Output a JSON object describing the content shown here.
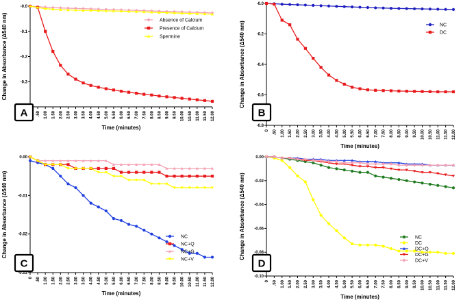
{
  "chart_data": [
    {
      "type": "line",
      "panel": "A",
      "xlabel": "Time (minutes)",
      "ylabel": "Change in Absorbance (Δ540 nm)",
      "categories": [
        "0",
        ".50",
        "1.00",
        "1.50",
        "2.00",
        "2.50",
        "3.00",
        "3.50",
        "4.00",
        "4.50",
        "5.00",
        "5.50",
        "6.00",
        "6.50",
        "7.00",
        "7.50",
        "8.00",
        "8.50",
        "9.00",
        "9.50",
        "10.00",
        "10.50",
        "11.00",
        "11.50",
        "12.00"
      ],
      "ylim": [
        -0.4,
        0.0
      ],
      "yticks": [
        "-0.4",
        "-0.3",
        "-0.2",
        "-0.1",
        "-0.0"
      ],
      "ytick_values": [
        -0.4,
        -0.3,
        -0.2,
        -0.1,
        0.0
      ],
      "legend_position": "top-right",
      "series": [
        {
          "name": "Absence of Calcium",
          "color": "#f4a0b4",
          "marker": "diamond",
          "values": [
            0,
            -0.002,
            -0.004,
            -0.006,
            -0.007,
            -0.008,
            -0.009,
            -0.01,
            -0.011,
            -0.012,
            -0.013,
            -0.014,
            -0.015,
            -0.016,
            -0.017,
            -0.018,
            -0.019,
            -0.02,
            -0.021,
            -0.022,
            -0.023,
            -0.024,
            -0.025,
            -0.026,
            -0.027
          ]
        },
        {
          "name": "Presence of Calcium",
          "color": "#e8191b",
          "marker": "square",
          "values": [
            0,
            -0.005,
            -0.1,
            -0.18,
            -0.235,
            -0.27,
            -0.29,
            -0.305,
            -0.315,
            -0.322,
            -0.328,
            -0.333,
            -0.338,
            -0.342,
            -0.346,
            -0.35,
            -0.353,
            -0.357,
            -0.36,
            -0.363,
            -0.366,
            -0.369,
            -0.372,
            -0.375,
            -0.378
          ]
        },
        {
          "name": "Spermine",
          "color": "#ffff00",
          "marker": "triangle",
          "values": [
            0,
            -0.005,
            -0.01,
            -0.012,
            -0.014,
            -0.015,
            -0.016,
            -0.017,
            -0.017,
            -0.018,
            -0.019,
            -0.019,
            -0.02,
            -0.021,
            -0.022,
            -0.023,
            -0.024,
            -0.025,
            -0.026,
            -0.027,
            -0.028,
            -0.029,
            -0.03,
            -0.031,
            -0.032
          ]
        }
      ]
    },
    {
      "type": "line",
      "panel": "B",
      "xlabel": "Time (minutes)",
      "ylabel": "Change in Absorbance (Δ540 nm)",
      "categories": [
        "0",
        ".50",
        "1.00",
        "1.50",
        "2.00",
        "2.50",
        "3.00",
        "3.50",
        "4.00",
        "4.50",
        "5.00",
        "5.50",
        "6.00",
        "6.50",
        "7.00",
        "7.50",
        "8.00",
        "8.50",
        "9.00",
        "9.50",
        "10.00",
        "10.50",
        "11.00",
        "11.50",
        "12.00"
      ],
      "ylim": [
        -0.8,
        0.0
      ],
      "yticks": [
        "-0.8",
        "-0.6",
        "-0.4",
        "-0.2",
        "-0.0"
      ],
      "ytick_values": [
        -0.8,
        -0.6,
        -0.4,
        -0.2,
        0.0
      ],
      "legend_position": "top-right",
      "series": [
        {
          "name": "NC",
          "color": "#1f1fbf",
          "marker": "circle",
          "values": [
            0,
            -0.002,
            -0.005,
            -0.007,
            -0.009,
            -0.011,
            -0.013,
            -0.015,
            -0.017,
            -0.019,
            -0.021,
            -0.023,
            -0.025,
            -0.027,
            -0.029,
            -0.03,
            -0.032,
            -0.033,
            -0.034,
            -0.035,
            -0.036,
            -0.037,
            -0.038,
            -0.039,
            -0.04
          ]
        },
        {
          "name": "DC",
          "color": "#e8191b",
          "marker": "square",
          "values": [
            0,
            -0.005,
            -0.11,
            -0.14,
            -0.235,
            -0.295,
            -0.36,
            -0.42,
            -0.47,
            -0.505,
            -0.53,
            -0.55,
            -0.56,
            -0.567,
            -0.57,
            -0.572,
            -0.573,
            -0.575,
            -0.576,
            -0.577,
            -0.578,
            -0.579,
            -0.58,
            -0.58,
            -0.58
          ]
        }
      ]
    },
    {
      "type": "line",
      "panel": "C",
      "xlabel": "Time (minutes)",
      "ylabel": "Change in Absorbance (Δ540 nm)",
      "categories": [
        "0",
        ".50",
        "1.00",
        "1.50",
        "2.00",
        "2.50",
        "3.00",
        "3.50",
        "4.00",
        "4.50",
        "5.00",
        "5.50",
        "6.00",
        "6.50",
        "7.00",
        "7.50",
        "8.00",
        "8.50",
        "9.00",
        "9.50",
        "10.00",
        "10.50",
        "11.00",
        "11.50",
        "12.00"
      ],
      "ylim": [
        -0.03,
        0.0
      ],
      "yticks": [
        "-0.03",
        "-0.02",
        "-0.01",
        "0.00"
      ],
      "ytick_values": [
        -0.03,
        -0.02,
        -0.01,
        0.0
      ],
      "legend_position": "bottom-right",
      "series": [
        {
          "name": "NC",
          "color": "#1f3fdf",
          "marker": "circle",
          "values": [
            -0.001,
            -0.0015,
            -0.002,
            -0.003,
            -0.005,
            -0.007,
            -0.008,
            -0.01,
            -0.012,
            -0.013,
            -0.014,
            -0.016,
            -0.0165,
            -0.0175,
            -0.018,
            -0.019,
            -0.02,
            -0.021,
            -0.022,
            -0.023,
            -0.024,
            -0.025,
            -0.025,
            -0.026,
            -0.026
          ]
        },
        {
          "name": "NC+Q",
          "color": "#e8191b",
          "marker": "square",
          "values": [
            0,
            -0.001,
            -0.002,
            -0.002,
            -0.002,
            -0.002,
            -0.003,
            -0.003,
            -0.003,
            -0.003,
            -0.003,
            -0.003,
            -0.004,
            -0.004,
            -0.004,
            -0.004,
            -0.004,
            -0.004,
            -0.005,
            -0.005,
            -0.005,
            -0.005,
            -0.005,
            -0.005,
            -0.005
          ]
        },
        {
          "name": "NC+G",
          "color": "#f4a0b4",
          "marker": "triangle",
          "values": [
            0,
            -0.001,
            -0.001,
            -0.001,
            -0.001,
            -0.001,
            -0.001,
            -0.001,
            -0.001,
            -0.001,
            -0.001,
            -0.002,
            -0.002,
            -0.002,
            -0.002,
            -0.002,
            -0.002,
            -0.002,
            -0.003,
            -0.003,
            -0.003,
            -0.003,
            -0.003,
            -0.003,
            -0.003
          ]
        },
        {
          "name": "NC+V",
          "color": "#ffff00",
          "marker": "triangle-down",
          "values": [
            0,
            -0.001,
            -0.002,
            -0.002,
            -0.002,
            -0.003,
            -0.003,
            -0.003,
            -0.003,
            -0.004,
            -0.004,
            -0.005,
            -0.005,
            -0.006,
            -0.006,
            -0.006,
            -0.007,
            -0.007,
            -0.007,
            -0.008,
            -0.008,
            -0.008,
            -0.008,
            -0.008,
            -0.008
          ]
        }
      ]
    },
    {
      "type": "line",
      "panel": "D",
      "xlabel": "Time (minutes)",
      "ylabel": "Change in Absorbance (Δ540 nm)",
      "categories": [
        "0",
        ".50",
        "1.00",
        "1.50",
        "2.00",
        "2.50",
        "3.00",
        "3.50",
        "4.00",
        "4.50",
        "5.00",
        "5.50",
        "6.00",
        "6.50",
        "7.00",
        "7.50",
        "8.00",
        "8.50",
        "9.00",
        "9.50",
        "10.00",
        "10.50",
        "11.00",
        "11.50",
        "12.00"
      ],
      "ylim": [
        -0.1,
        0.0
      ],
      "yticks": [
        "-0.10",
        "-0.08",
        "-0.06",
        "-0.04",
        "-0.02",
        "0.00"
      ],
      "ytick_values": [
        -0.1,
        -0.08,
        -0.06,
        -0.04,
        -0.02,
        0.0
      ],
      "legend_position": "bottom-right",
      "series": [
        {
          "name": "NC",
          "color": "#1f7a1f",
          "marker": "circle",
          "values": [
            0,
            0,
            -0.001,
            -0.002,
            -0.003,
            -0.004,
            -0.005,
            -0.007,
            -0.009,
            -0.01,
            -0.011,
            -0.012,
            -0.013,
            -0.013,
            -0.016,
            -0.017,
            -0.018,
            -0.019,
            -0.02,
            -0.021,
            -0.022,
            -0.023,
            -0.024,
            -0.025,
            -0.026
          ]
        },
        {
          "name": "DC",
          "color": "#ffff00",
          "marker": "circle",
          "values": [
            0,
            -0.001,
            -0.003,
            -0.009,
            -0.016,
            -0.021,
            -0.036,
            -0.049,
            -0.056,
            -0.062,
            -0.068,
            -0.073,
            -0.074,
            -0.074,
            -0.074,
            -0.075,
            -0.077,
            -0.079,
            -0.079,
            -0.079,
            -0.08,
            -0.08,
            -0.08,
            -0.081,
            -0.081
          ]
        },
        {
          "name": "DC+Q",
          "color": "#1f3fdf",
          "marker": "triangle",
          "values": [
            0,
            0,
            -0.001,
            -0.001,
            -0.001,
            -0.002,
            -0.002,
            -0.002,
            -0.003,
            -0.003,
            -0.003,
            -0.003,
            -0.004,
            -0.004,
            -0.004,
            -0.005,
            -0.005,
            -0.005,
            -0.006,
            -0.006,
            -0.006,
            -0.007,
            -0.007,
            -0.007,
            -0.007
          ]
        },
        {
          "name": "DC+G",
          "color": "#e8191b",
          "marker": "triangle-down",
          "values": [
            0,
            0,
            -0.001,
            -0.001,
            -0.002,
            -0.003,
            -0.003,
            -0.004,
            -0.005,
            -0.006,
            -0.006,
            -0.007,
            -0.008,
            -0.008,
            -0.009,
            -0.009,
            -0.01,
            -0.011,
            -0.011,
            -0.012,
            -0.013,
            -0.013,
            -0.014,
            -0.015,
            -0.016
          ]
        },
        {
          "name": "DC+V",
          "color": "#f4a0b4",
          "marker": "diamond",
          "values": [
            0,
            0,
            -0.001,
            -0.001,
            -0.002,
            -0.002,
            -0.003,
            -0.003,
            -0.004,
            -0.004,
            -0.005,
            -0.005,
            -0.005,
            -0.006,
            -0.006,
            -0.006,
            -0.006,
            -0.007,
            -0.007,
            -0.007,
            -0.007,
            -0.007,
            -0.007,
            -0.007,
            -0.007
          ]
        }
      ]
    }
  ]
}
